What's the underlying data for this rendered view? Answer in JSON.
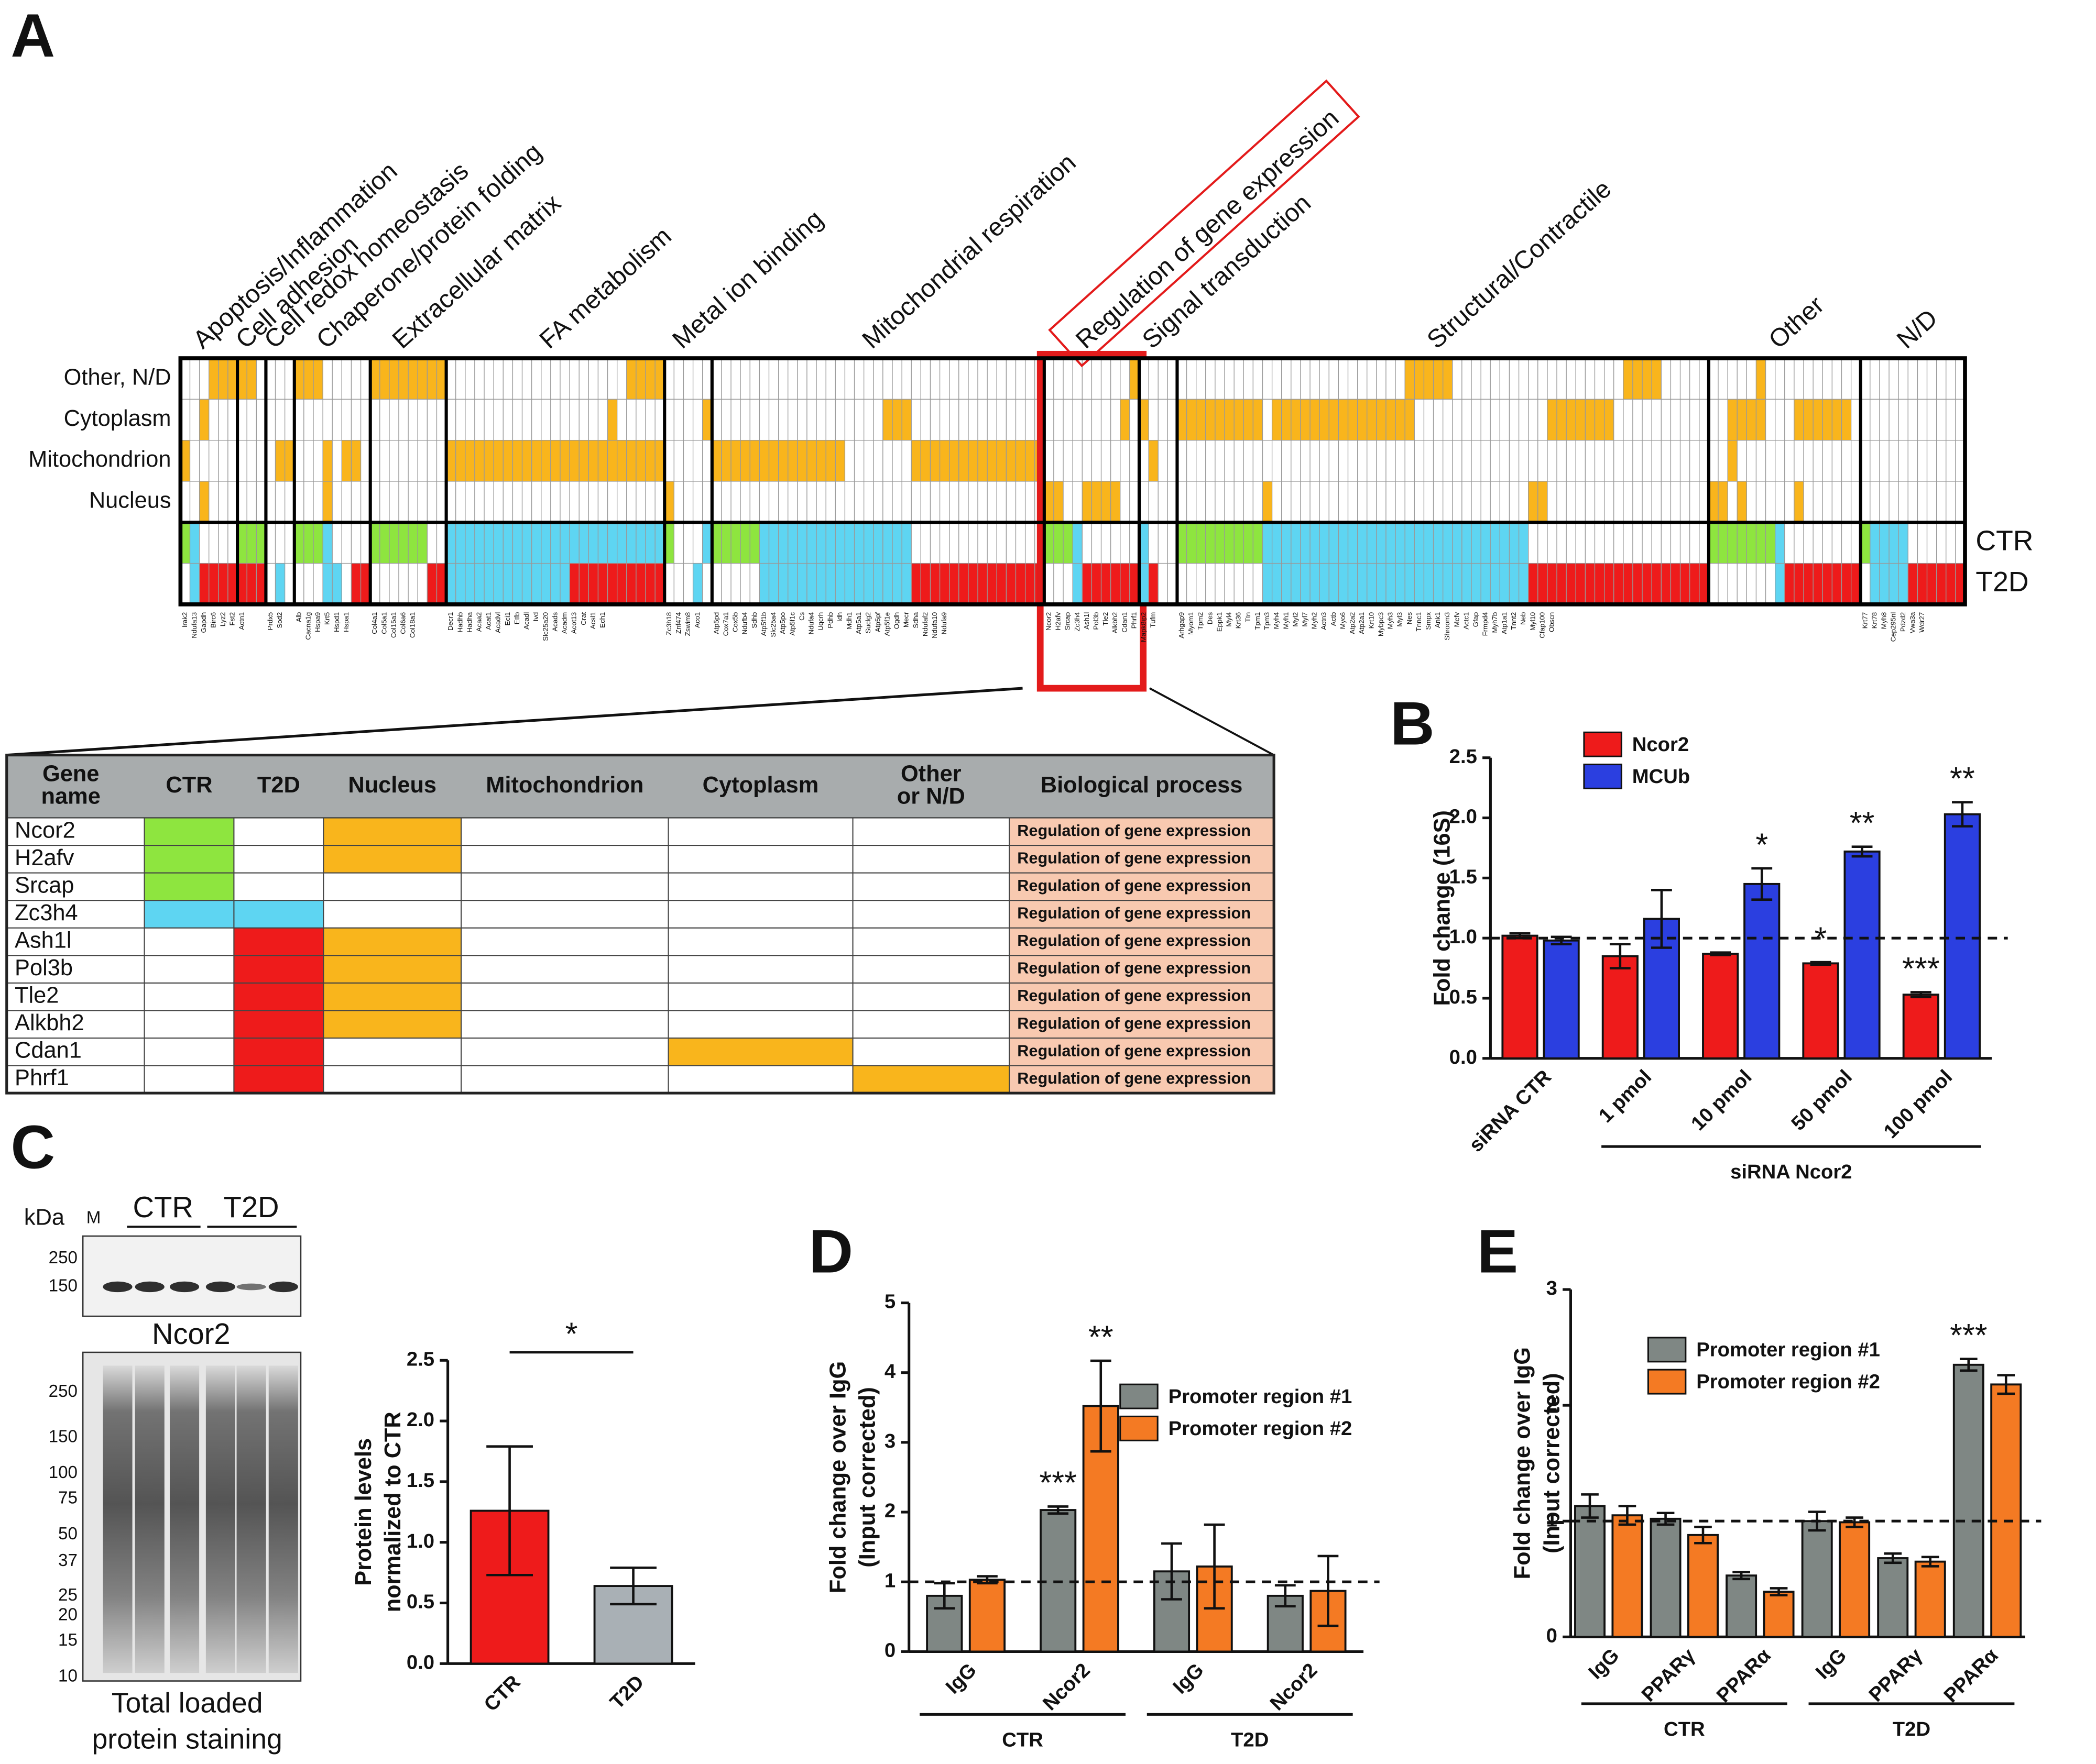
{
  "figure": {
    "panel_labels": [
      "A",
      "B",
      "C",
      "D",
      "E"
    ],
    "table": {
      "columns": [
        [
          "Gene",
          "name"
        ],
        [
          "CTR"
        ],
        [
          "T2D"
        ],
        [
          "Nucleus"
        ],
        [
          "Mitochondrion"
        ],
        [
          "Cytoplasm"
        ],
        [
          "Other",
          "or N/D"
        ],
        [
          "Biological process"
        ]
      ],
      "rows": [
        [
          "Ncor2",
          "g",
          ".",
          "o",
          ".",
          ".",
          ".",
          "Regulation of gene expression"
        ],
        [
          "H2afv",
          "g",
          ".",
          "o",
          ".",
          ".",
          ".",
          "Regulation of gene expression"
        ],
        [
          "Srcap",
          "g",
          ".",
          ".",
          ".",
          ".",
          ".",
          "Regulation of gene expression"
        ],
        [
          "Zc3h4",
          "c",
          "c",
          ".",
          ".",
          ".",
          ".",
          "Regulation of gene expression"
        ],
        [
          "Ash1l",
          ".",
          "r",
          "o",
          ".",
          ".",
          ".",
          "Regulation of gene expression"
        ],
        [
          "Pol3b",
          ".",
          "r",
          "o",
          ".",
          ".",
          ".",
          "Regulation of gene expression"
        ],
        [
          "Tle2",
          ".",
          "r",
          "o",
          ".",
          ".",
          ".",
          "Regulation of gene expression"
        ],
        [
          "Alkbh2",
          ".",
          "r",
          "o",
          ".",
          ".",
          ".",
          "Regulation of gene expression"
        ],
        [
          "Cdan1",
          ".",
          "r",
          ".",
          ".",
          "o",
          ".",
          "Regulation of gene expression"
        ],
        [
          "Phrf1",
          ".",
          "r",
          ".",
          ".",
          ".",
          "o",
          "Regulation of gene expression"
        ]
      ]
    },
    "blot": {
      "unit": "kDa",
      "marker": "M",
      "lanes": [
        "CTR",
        "T2D"
      ],
      "top_markers": [
        250,
        150
      ],
      "target": "Ncor2",
      "ladder": [
        250,
        150,
        100,
        75,
        50,
        37,
        25,
        20,
        15,
        10
      ],
      "caption": [
        "Total loaded",
        "protein staining"
      ]
    }
  },
  "chart_data": [
    {
      "type": "heatmap",
      "row_labels": [
        "Other, N/D",
        "Cytoplasm",
        "Mitochondrion",
        "Nucleus",
        "CTR",
        "T2D"
      ],
      "colors": {
        ".": "#ffffff",
        "o": "#f9b51c",
        "g": "#8ee53f",
        "c": "#5ed5f2",
        "r": "#ee1b1b"
      },
      "groups": [
        {
          "name": "Apoptosis/Inflammation",
          "genes": [
            "Irak2",
            "Ndufa13",
            "Gapdh",
            "Birc6",
            "Lyz2",
            "Fst2"
          ],
          "cells": [
            "3.3o",
            "2.1o3.",
            "1o5.",
            "2.1o3.",
            "1g1c4.",
            "1.1c4r"
          ]
        },
        {
          "name": "Cell adhesion",
          "genes": [
            "Actn1",
            null,
            null
          ],
          "cells": [
            "2o1.",
            "3.",
            "3.",
            "3.",
            "3g",
            "3r"
          ]
        },
        {
          "name": "Cell redox homeostasis",
          "genes": [
            "Prdx5",
            "Sod2",
            null
          ],
          "cells": [
            "3.",
            "3.",
            "1.2o",
            "3.",
            "3.",
            "1.1c1."
          ]
        },
        {
          "name": "Chaperone/protein folding",
          "genes": [
            "Alb",
            "Cacna1g",
            "Hspa9",
            "Krt5",
            "Hspd1",
            "Hspa1",
            null,
            null
          ],
          "cells": [
            "3o5.",
            "8.",
            "3.1o1.2o1.",
            "3.1o4.",
            "3g1c4.",
            "3.2c1.2r"
          ]
        },
        {
          "name": "Extracellular matrix",
          "genes": [
            "Col4a1",
            "Col5a1",
            "Col15a1",
            "Col6a6",
            "Col18a1",
            null,
            null,
            null
          ],
          "cells": [
            "8o",
            "8.",
            "8.",
            "8.",
            "6g2.",
            "6.2r"
          ]
        },
        {
          "name": "FA metabolism",
          "genes": [
            "Decr1",
            "Hadhb",
            "Hadha",
            "Acaa2",
            "Acat1",
            "Acadvl",
            "Eci1",
            "Etfb",
            "Acadl",
            "Ivd",
            "Slc25a20",
            "Acads",
            "Acadm",
            "Acot13",
            "Crat",
            "Acsl1",
            "Ech1",
            null,
            null,
            null,
            null,
            null,
            null
          ],
          "cells": [
            "19.4o",
            "17.1o5.",
            "23o",
            "23.",
            "23c",
            "13c10r"
          ]
        },
        {
          "name": "Metal ion binding",
          "genes": [
            "Zc3h18",
            "Znf474",
            "Zswim8",
            "Aco1",
            null
          ],
          "cells": [
            "5.",
            "4.1o",
            "5.",
            "1o4.",
            "1g3.1c",
            "3.1c1."
          ]
        },
        {
          "name": "Mitochondrial respiration",
          "genes": [
            "Atp5pd",
            "Cox7a1",
            "Cox5b",
            "Ndufb4",
            "Sdhb",
            "Atp5f1b",
            "Slc25a4",
            "Atp5po",
            "Atp5f1c",
            "Cs",
            "Ndufa4",
            "Uqcrh",
            "Pdhb",
            "Idh",
            "Mdh1",
            "Atp5a1",
            "Suclg2",
            "Atp5pf",
            "Atp5f1e",
            "Ogdh",
            "Mecr",
            "Sdha",
            "Ndufaf2",
            "Ndufa10",
            "Ndufa9",
            null,
            null,
            null,
            null,
            null,
            null,
            null,
            null,
            null,
            null
          ],
          "cells": [
            "35.",
            "18.3o14.",
            "14o7.14o",
            "35.",
            "5g16c14.",
            "5.16c14r"
          ]
        },
        {
          "name": "Regulation of gene expression",
          "highlight": true,
          "genes": [
            "Ncor2",
            "H2afv",
            "Srcap",
            "Zc3h4",
            "Ash1l",
            "Pol3b",
            "Tle2",
            "Alkbh2",
            "Cdan1",
            "Phrf1"
          ],
          "cells": [
            "9.1o",
            "8.1o1.",
            "10.",
            "2o2.4o2.",
            "3g1c6.",
            "3.1c6r"
          ]
        },
        {
          "name": "Signal transduction",
          "genes": [
            "Mapk8ip2",
            "Tufm",
            null,
            null
          ],
          "cells": [
            "4.",
            "1o3.",
            "1.1o2.",
            "4.",
            "1c3.",
            "1c1r2."
          ]
        },
        {
          "name": "Structural/Contractile",
          "genes": [
            "Arhgap9",
            "Myom1",
            "Tpm2",
            "Des",
            "Eppk1",
            "Myl4",
            "Krt36",
            "Ttn",
            "Tpm1",
            "Tpm3",
            "Myh4",
            "Myh1",
            "Myl2",
            "Myl7",
            "Myh2",
            "Actn3",
            "Actb",
            "Myo6",
            "Atp2a2",
            "Atp2a1",
            "Krt10",
            "Mybpc3",
            "Myh3",
            "Myl3",
            "Nes",
            "Tnnc1",
            "Smpx",
            "Ank1",
            "Shroom3",
            "Mefv",
            "Actc1",
            "Gfap",
            "Frmpd4",
            "Myh7b",
            "Atp1a1",
            "Tnnt2",
            "Neb",
            "Myl10",
            "Cfap100",
            "Obscn",
            null,
            null,
            null,
            null,
            null,
            null,
            null,
            null,
            null,
            null,
            null,
            null,
            null,
            null,
            null,
            null
          ],
          "cells": [
            "24.5o18.4o5.",
            "9o1.15o14.7o10.",
            "56.",
            "9.1o27.2o17.",
            "9g28c19.",
            "9.28c19r"
          ]
        },
        {
          "name": "Other",
          "genes": [
            null,
            null,
            null,
            null,
            null,
            null,
            null,
            null,
            null,
            null,
            null,
            null,
            null,
            null,
            null,
            null
          ],
          "cells": [
            "5.1o10.",
            "2.4o3.6o1.",
            "2.1o13.",
            "2o1.1o5.1o6.",
            "7g1c8.",
            "7.1c8r"
          ]
        },
        {
          "name": "N/D",
          "genes": [
            "Krt77",
            "Krt78",
            "Myh8",
            "Cep295nl",
            "Pdzd2",
            "Vwa3a",
            "Wdr27",
            null,
            null,
            null,
            null
          ],
          "cells": [
            "11.",
            "11.",
            "11.",
            "11.",
            "1g4c6.",
            "1.4c6r"
          ]
        }
      ]
    },
    {
      "type": "bar",
      "ylabel": [
        "Fold change (16S)"
      ],
      "groups": [
        {
          "name": null,
          "categories": [
            "siRNA CTR"
          ]
        },
        {
          "name": "siRNA Ncor2",
          "categories": [
            "1 pmol",
            "10 pmol",
            "50 pmol",
            "100 pmol"
          ]
        }
      ],
      "series": [
        {
          "name": "Ncor2",
          "color": "#ee1b1b",
          "values": [
            1.02,
            0.85,
            0.87,
            0.79,
            0.53
          ],
          "errors": [
            0.02,
            0.1,
            0.01,
            0.01,
            0.02
          ],
          "annotations": [
            null,
            null,
            null,
            "*",
            "***"
          ]
        },
        {
          "name": "MCUb",
          "color": "#2b3fe0",
          "values": [
            0.98,
            1.16,
            1.45,
            1.72,
            2.03
          ],
          "errors": [
            0.03,
            0.24,
            0.13,
            0.04,
            0.1
          ],
          "annotations": [
            null,
            null,
            "*",
            "**",
            "**"
          ]
        }
      ],
      "ylim": [
        0,
        2.5
      ],
      "yticks": [
        {
          "value": 0,
          "label": "0.0"
        },
        0.5,
        {
          "value": 1,
          "label": "1.0"
        },
        1.5,
        {
          "value": 2,
          "label": "2.0"
        },
        2.5
      ],
      "ref_line": 1
    },
    {
      "type": "bar",
      "ylabel": [
        "Protein levels",
        "normalized to CTR"
      ],
      "groups": [
        {
          "name": null,
          "categories": [
            "CTR",
            "T2D"
          ]
        }
      ],
      "series": [
        {
          "colors": [
            "#ee1b1b",
            "#a9b0b5"
          ],
          "values": [
            1.26,
            0.64
          ],
          "errors": [
            0.53,
            0.15
          ]
        }
      ],
      "comparison": "*",
      "ylim": [
        0,
        2.5
      ],
      "yticks": [
        {
          "value": 0,
          "label": "0.0"
        },
        0.5,
        {
          "value": 1,
          "label": "1.0"
        },
        1.5,
        {
          "value": 2,
          "label": "2.0"
        },
        2.5
      ]
    },
    {
      "type": "bar",
      "ylabel": [
        "Fold change over IgG",
        "(Input corrected)"
      ],
      "groups": [
        {
          "name": "CTR",
          "categories": [
            "IgG",
            "Ncor2"
          ]
        },
        {
          "name": "T2D",
          "categories": [
            "IgG",
            "Ncor2"
          ]
        }
      ],
      "series": [
        {
          "name": "Promoter region #1",
          "color": "#7f8784",
          "values": [
            0.8,
            2.03,
            1.15,
            0.8
          ],
          "errors": [
            0.18,
            0.05,
            0.4,
            0.15
          ],
          "annotations": [
            null,
            "***",
            null,
            null
          ]
        },
        {
          "name": "Promoter region #2",
          "color": "#f47a23",
          "values": [
            1.03,
            3.52,
            1.22,
            0.87
          ],
          "errors": [
            0.05,
            0.65,
            0.6,
            0.5
          ],
          "annotations": [
            null,
            "**",
            null,
            null
          ]
        }
      ],
      "ylim": [
        0,
        5
      ],
      "yticks": [
        0,
        1,
        2,
        3,
        4,
        5
      ],
      "ref_line": 1
    },
    {
      "type": "bar",
      "ylabel": [
        "Fold change over IgG",
        "(Input corrected)"
      ],
      "groups": [
        {
          "name": "CTR",
          "categories": [
            "IgG",
            "PPARγ",
            "PPARα"
          ]
        },
        {
          "name": "T2D",
          "categories": [
            "IgG",
            "PPARγ",
            "PPARα"
          ]
        }
      ],
      "series": [
        {
          "name": "Promoter region #1",
          "color": "#7f8784",
          "values": [
            1.13,
            1.02,
            0.53,
            1.0,
            0.68,
            2.35
          ],
          "errors": [
            0.1,
            0.05,
            0.03,
            0.08,
            0.04,
            0.05
          ],
          "annotations": [
            null,
            null,
            null,
            null,
            null,
            "***"
          ]
        },
        {
          "name": "Promoter region #2",
          "color": "#f47a23",
          "values": [
            1.05,
            0.88,
            0.39,
            0.99,
            0.65,
            2.18
          ],
          "errors": [
            0.08,
            0.07,
            0.03,
            0.04,
            0.04,
            0.08
          ]
        }
      ],
      "ylim": [
        0,
        3
      ],
      "yticks": [
        0,
        1,
        2,
        3
      ],
      "ref_line": 1
    }
  ]
}
